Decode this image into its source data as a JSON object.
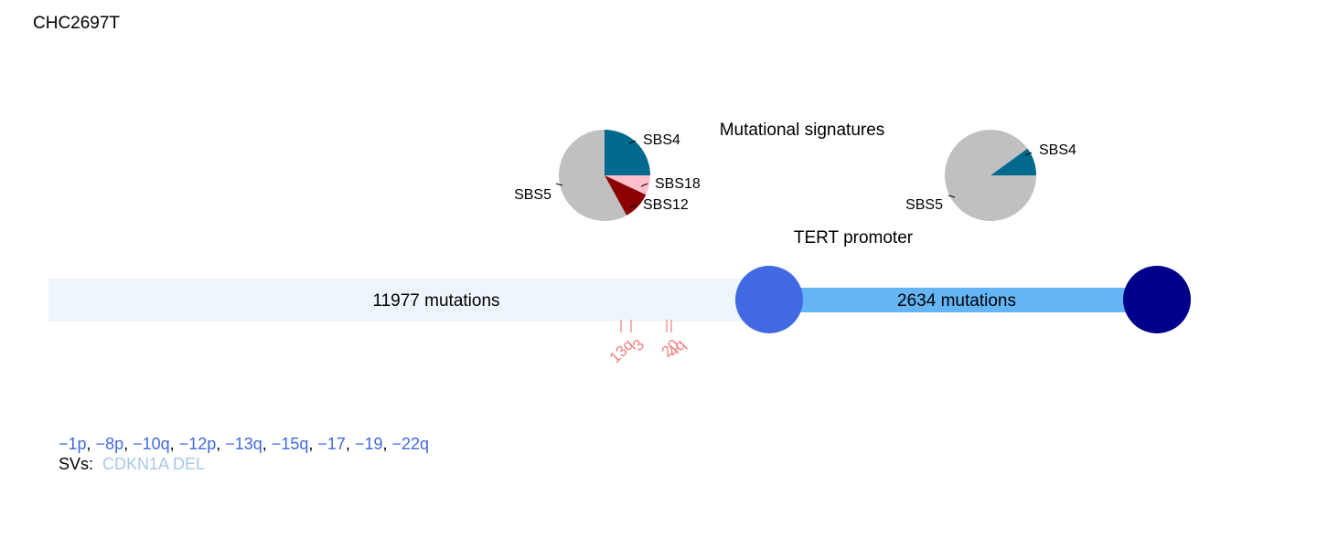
{
  "sample": {
    "title": "CHC2697T"
  },
  "labels": {
    "mutational_signatures": "Mutational signatures",
    "tert_promoter": "TERT promoter"
  },
  "colors": {
    "trunk": "#eef6fd",
    "branch": "#64b5f6",
    "node1": "#4169E1",
    "node2": "#00008B",
    "sbs4": "#006a8e",
    "sbs5": "#c0c0c0",
    "sbs12": "#8b0000",
    "sbs18": "#ffc0cb",
    "cna_marker": "#f08080",
    "cna_text": "#4169E1",
    "sv_text": "#a8c8e8"
  },
  "segments": {
    "trunk": {
      "label": "11977 mutations",
      "mutations": 11977
    },
    "branch": {
      "label": "2634 mutations",
      "mutations": 2634
    }
  },
  "pie_charts": [
    {
      "slices": [
        {
          "name": "SBS4",
          "fraction": 0.25
        },
        {
          "name": "SBS18",
          "fraction": 0.07
        },
        {
          "name": "SBS12",
          "fraction": 0.1
        },
        {
          "name": "SBS5",
          "fraction": 0.58
        }
      ]
    },
    {
      "slices": [
        {
          "name": "SBS4",
          "fraction": 0.1
        },
        {
          "name": "SBS5",
          "fraction": 0.9
        }
      ]
    }
  ],
  "cna_markers": [
    "13q",
    "3",
    "20",
    "4q"
  ],
  "cna_events": [
    "−1p",
    "−8p",
    "−10q",
    "−12p",
    "−13q",
    "−15q",
    "−17",
    "−19",
    "−22q"
  ],
  "sv": {
    "label": "SVs:",
    "values": "CDKN1A DEL"
  }
}
